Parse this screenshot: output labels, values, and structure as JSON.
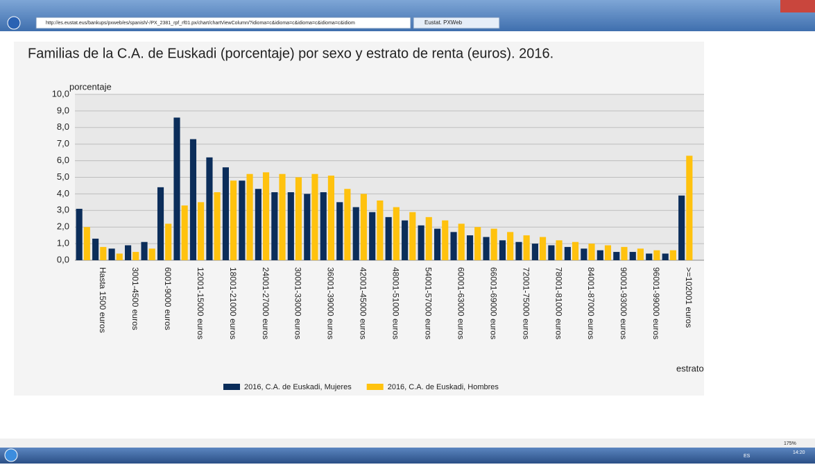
{
  "browser": {
    "url": "http://es.eustat.eus/bankups/pxweb/es/spanish/-/PX_2381_rpf_rf01.px/chart/chartViewColumn/?idioma=c&idioma=c&idioma=c&idioma=c&idiom",
    "tab": "Eustat. PXWeb",
    "zoom": "175%"
  },
  "taskbar": {
    "lang": "ES",
    "time": "14:20"
  },
  "chart_data": {
    "type": "bar",
    "title": "Familias de la C.A. de Euskadi (porcentaje) por  sexo y estrato de renta (euros). 2016.",
    "y_label": "porcentaje",
    "x_label": "estrato",
    "categories": [
      null,
      "Hasta 1500 euros",
      null,
      "3001-4500 euros",
      null,
      "6001-9000 euros",
      null,
      "12001-15000 euros",
      null,
      "18001-21000 euros",
      null,
      "24001-27000 euros",
      null,
      "30001-33000 euros",
      null,
      "36001-39000 euros",
      null,
      "42001-45000 euros",
      null,
      "48001-51000 euros",
      null,
      "54001-57000 euros",
      null,
      "60001-63000 euros",
      null,
      "66001-69000 euros",
      null,
      "72001-75000 euros",
      null,
      "78001-81000 euros",
      null,
      "84001-87000 euros",
      null,
      "90001-93000 euros",
      null,
      "96001-99000 euros",
      null,
      ">=102001 euros"
    ],
    "series": [
      {
        "name": "2016, C.A. de Euskadi, Mujeres",
        "color": "#0b2d5a",
        "values": [
          3.1,
          1.3,
          0.7,
          0.9,
          1.1,
          4.4,
          8.6,
          7.3,
          6.2,
          5.6,
          4.8,
          4.3,
          4.1,
          4.1,
          4.0,
          4.1,
          3.5,
          3.2,
          2.9,
          2.6,
          2.4,
          2.1,
          1.9,
          1.7,
          1.5,
          1.4,
          1.2,
          1.1,
          1.0,
          0.9,
          0.8,
          0.7,
          0.6,
          0.5,
          0.5,
          0.4,
          0.4,
          3.9
        ]
      },
      {
        "name": "2016, C.A. de Euskadi, Hombres",
        "color": "#ffc20e",
        "values": [
          2.0,
          0.8,
          0.4,
          0.5,
          0.7,
          2.2,
          3.3,
          3.5,
          4.1,
          4.8,
          5.2,
          5.3,
          5.2,
          5.0,
          5.2,
          5.1,
          4.3,
          4.0,
          3.6,
          3.2,
          2.9,
          2.6,
          2.4,
          2.2,
          2.0,
          1.9,
          1.7,
          1.5,
          1.4,
          1.2,
          1.1,
          1.0,
          0.9,
          0.8,
          0.7,
          0.6,
          0.6,
          6.3
        ]
      }
    ],
    "ylim": [
      0,
      10
    ],
    "yticks": [
      {
        "value": 0,
        "label": "0,0"
      },
      {
        "value": 1,
        "label": "1,0"
      },
      {
        "value": 2,
        "label": "2,0"
      },
      {
        "value": 3,
        "label": "3,0"
      },
      {
        "value": 4,
        "label": "4,0"
      },
      {
        "value": 5,
        "label": "5,0"
      },
      {
        "value": 6,
        "label": "6,0"
      },
      {
        "value": 7,
        "label": "7,0"
      },
      {
        "value": 8,
        "label": "8,0"
      },
      {
        "value": 9,
        "label": "9,0"
      },
      {
        "value": 10,
        "label": "10,0"
      }
    ],
    "grid": true,
    "legend": "bottom"
  }
}
